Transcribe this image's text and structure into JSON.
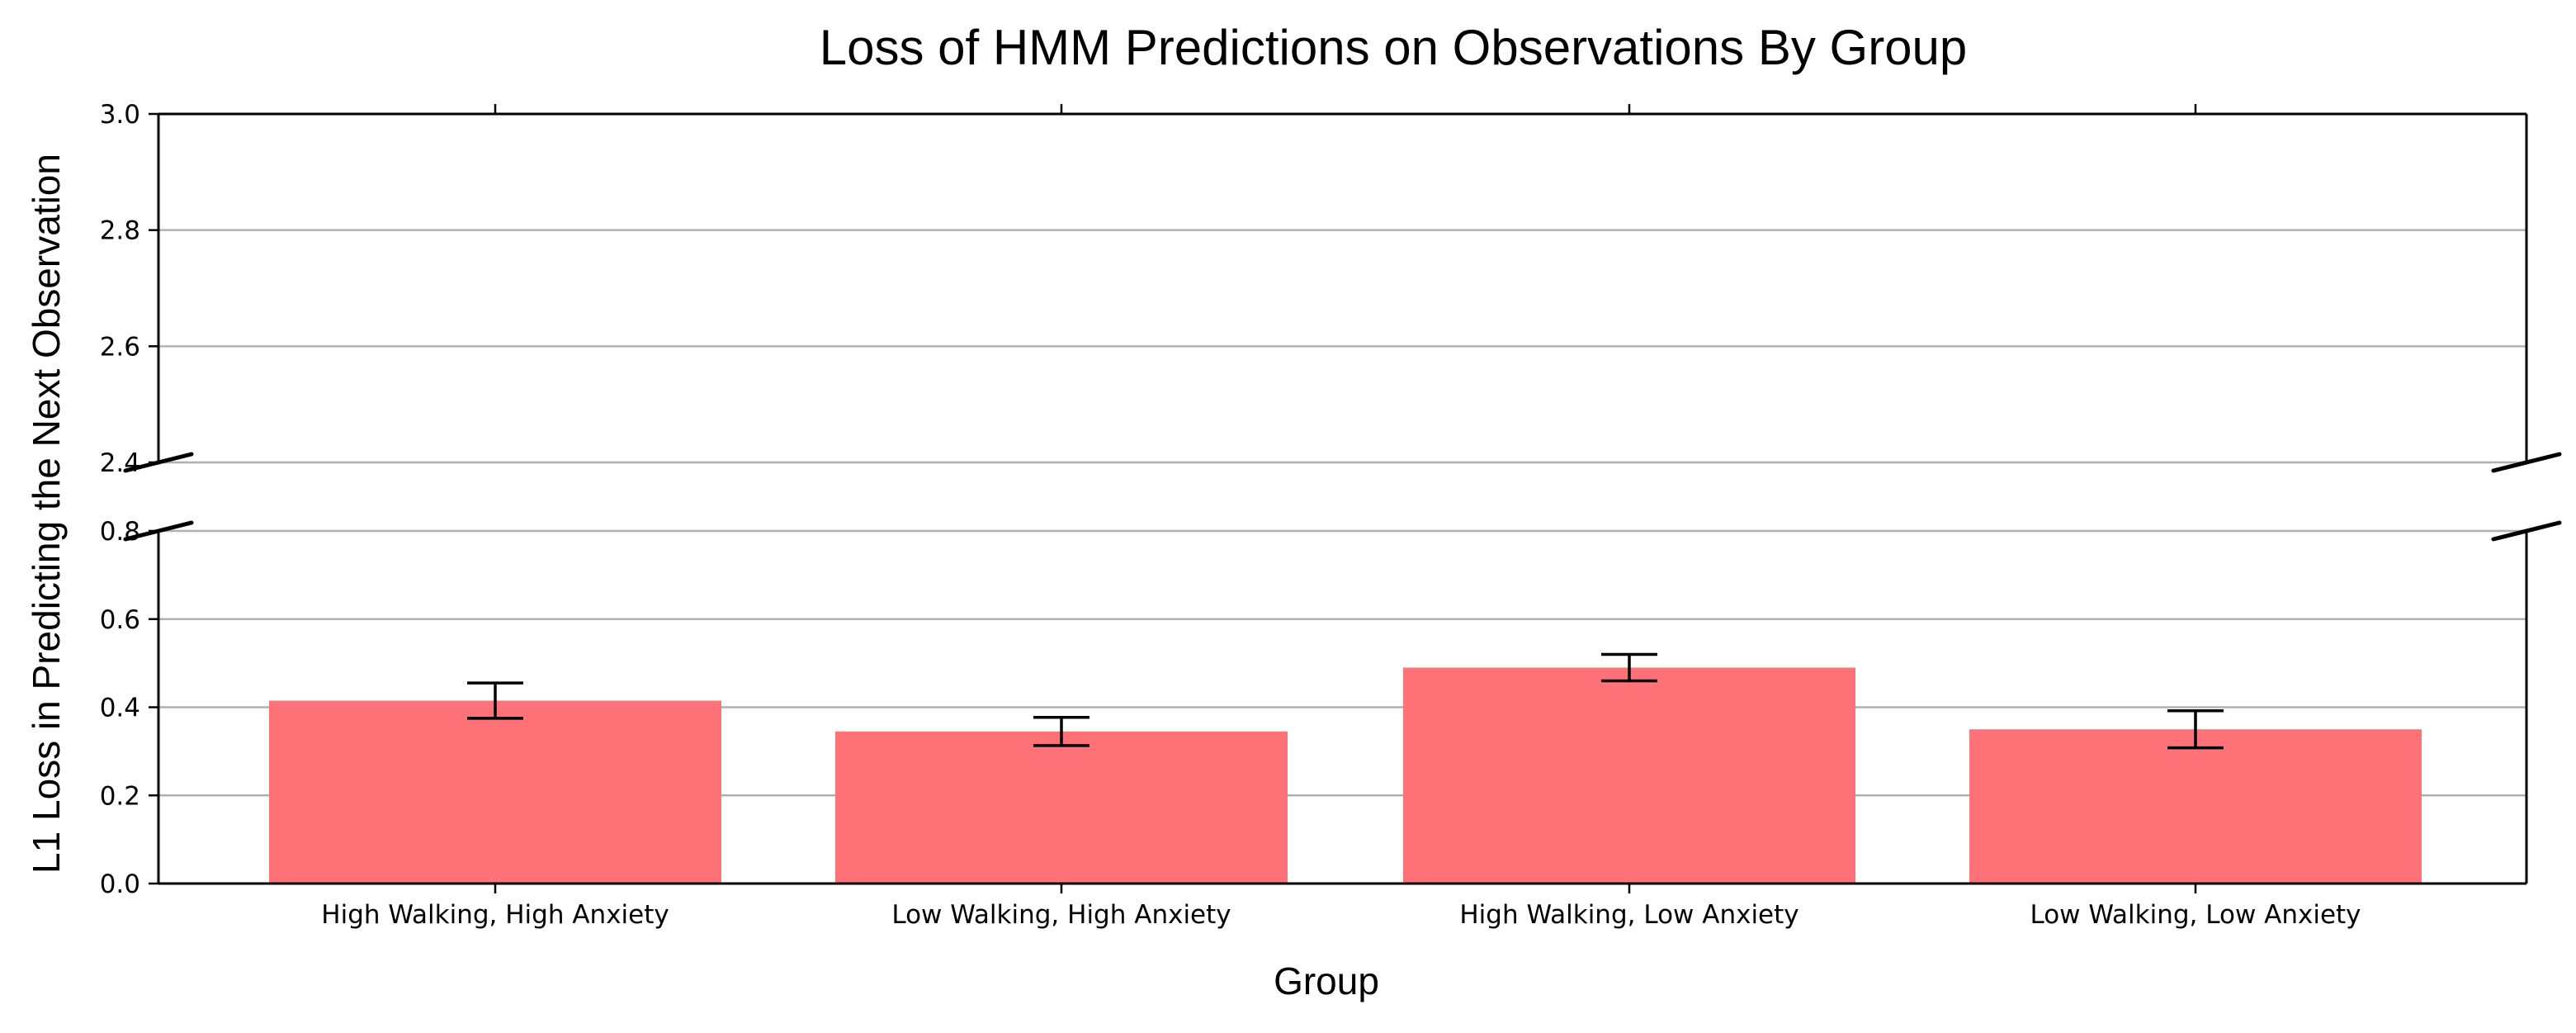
{
  "chart_data": {
    "type": "bar",
    "title": "Loss of HMM Predictions on Observations By Group",
    "xlabel": "Group",
    "ylabel": "L1 Loss in Predicting the Next Observation",
    "categories": [
      "High Walking, High Anxiety",
      "Low Walking, High Anxiety",
      "High Walking, Low Anxiety",
      "Low Walking, Low Anxiety"
    ],
    "values": [
      0.415,
      0.345,
      0.49,
      0.35
    ],
    "error": [
      0.04,
      0.032,
      0.03,
      0.042
    ],
    "ylim_lower": [
      0.0,
      0.8
    ],
    "ylim_upper": [
      2.4,
      3.0
    ],
    "yticks_lower": [
      "0.0",
      "0.2",
      "0.4",
      "0.6",
      "0.8"
    ],
    "yticks_upper": [
      "2.4",
      "2.6",
      "2.8",
      "3.0"
    ],
    "broken_axis": true,
    "grid": "horizontal",
    "bar_color": "#ff7378",
    "error_color": "#000000",
    "grid_color": "#b0b0b0",
    "axis_color": "#000000"
  }
}
